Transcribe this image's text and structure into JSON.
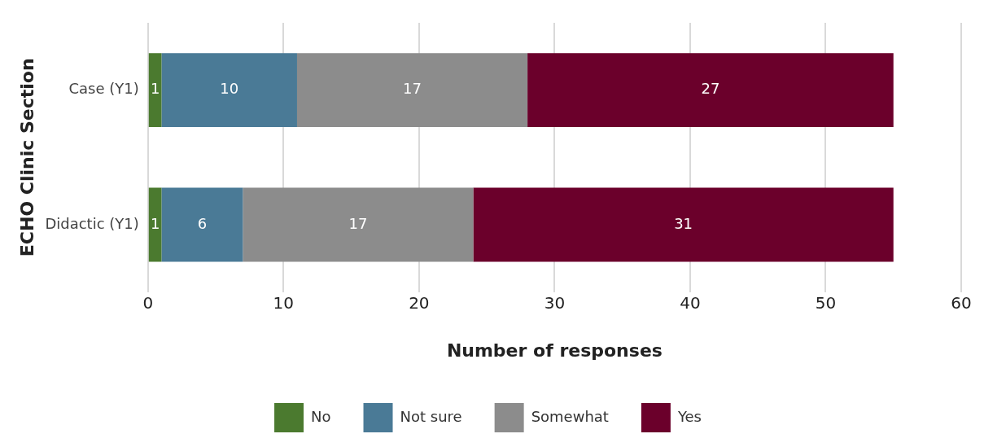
{
  "chart_data": {
    "type": "bar",
    "orientation": "horizontal",
    "stacked": true,
    "ylabel": "ECHO Clinic Section",
    "xlabel": "Number of responses",
    "categories": [
      "Case (Y1)",
      "Didactic (Y1)"
    ],
    "series": [
      {
        "name": "No",
        "color": "#4b7a2f",
        "values": [
          1,
          1
        ]
      },
      {
        "name": "Not sure",
        "color": "#4a7a96",
        "values": [
          10,
          6
        ]
      },
      {
        "name": "Somewhat",
        "color": "#8c8c8c",
        "values": [
          17,
          17
        ]
      },
      {
        "name": "Yes",
        "color": "#6b002b",
        "values": [
          27,
          31
        ]
      }
    ],
    "xlim": [
      0,
      60
    ],
    "xticks": [
      0,
      10,
      20,
      30,
      40,
      50,
      60
    ],
    "grid": "x",
    "legend": "bottom",
    "data_labels": true
  }
}
